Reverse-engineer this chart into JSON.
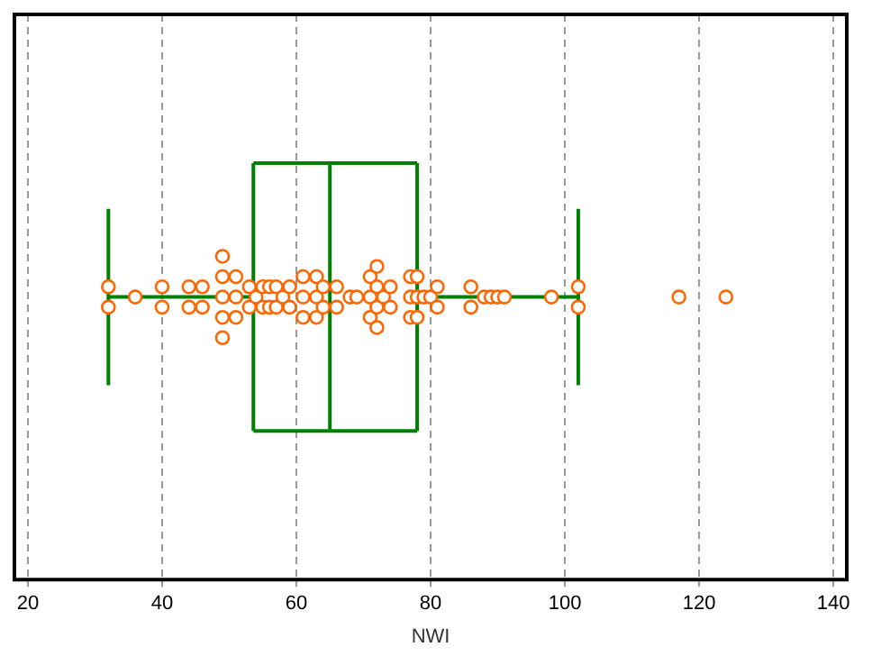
{
  "chart_data": {
    "type": "box",
    "orientation": "horizontal",
    "categories": [
      null
    ],
    "xlabel": "NWI",
    "xlim": [
      18,
      142
    ],
    "xticks": [
      20,
      40,
      60,
      80,
      100,
      120,
      140
    ],
    "grid": "x",
    "legend": false,
    "series": [
      {
        "type": "box",
        "color": "#008000",
        "boxes": [
          {
            "low": 32,
            "q1": 53.6,
            "median": 65,
            "q3": 78,
            "high": 102
          }
        ]
      },
      {
        "type": "scatter",
        "color": "#ff6600",
        "marker": "circle",
        "x": [
          null,
          null,
          null,
          null,
          null,
          null,
          null,
          null,
          null,
          null,
          null,
          null,
          null,
          null,
          null,
          null,
          null,
          null,
          null,
          null,
          null,
          null,
          null,
          null,
          null,
          null,
          null,
          null,
          null,
          null,
          null,
          null,
          null,
          null,
          null,
          null,
          null,
          null,
          null,
          null,
          null,
          null,
          null,
          null,
          null,
          null,
          null,
          null,
          null,
          null,
          null,
          null,
          null,
          null,
          null,
          null,
          null,
          null,
          null,
          null,
          null,
          null,
          null,
          null,
          null,
          null,
          null,
          null,
          null,
          null,
          null,
          null
        ],
        "values": [
          32,
          32,
          36,
          40,
          40,
          44,
          44,
          46,
          46,
          49,
          49,
          49,
          49,
          49,
          51,
          51,
          51,
          53,
          53,
          54,
          55,
          55,
          56,
          56,
          57,
          57,
          58,
          59,
          59,
          61,
          61,
          61,
          63,
          63,
          63,
          64,
          64,
          66,
          66,
          68,
          69,
          71,
          71,
          71,
          72,
          72,
          72,
          72,
          73,
          74,
          74,
          77,
          77,
          77,
          78,
          78,
          78,
          79,
          80,
          81,
          81,
          86,
          86,
          88,
          89,
          90,
          91,
          98,
          102,
          102,
          117,
          124
        ]
      }
    ]
  }
}
